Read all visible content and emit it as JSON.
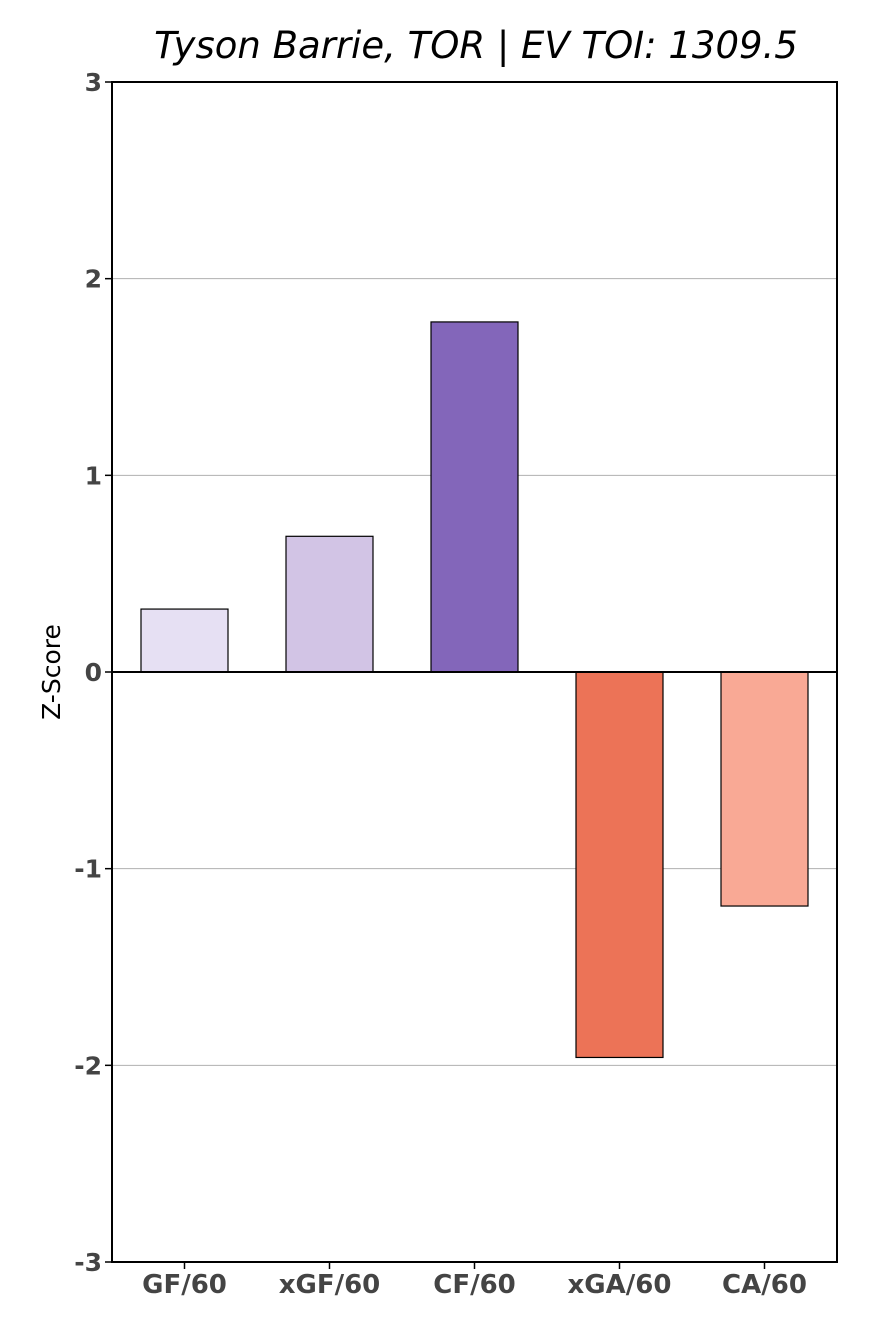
{
  "chart_data": {
    "type": "bar",
    "title": "Tyson Barrie, TOR  |  EV TOI: 1309.5",
    "xlabel": "",
    "ylabel": "Z-Score",
    "categories": [
      "GF/60",
      "xGF/60",
      "CF/60",
      "xGA/60",
      "CA/60"
    ],
    "values": [
      0.32,
      0.69,
      1.78,
      -1.96,
      -1.19
    ],
    "colors": [
      "#e6e0f3",
      "#d2c4e5",
      "#8366ba",
      "#ec7357",
      "#f9a995"
    ],
    "ylim": [
      -3,
      3
    ],
    "yticks": [
      3,
      2,
      1,
      0,
      -1,
      -2,
      -3
    ],
    "grid": true,
    "legend": "none"
  }
}
